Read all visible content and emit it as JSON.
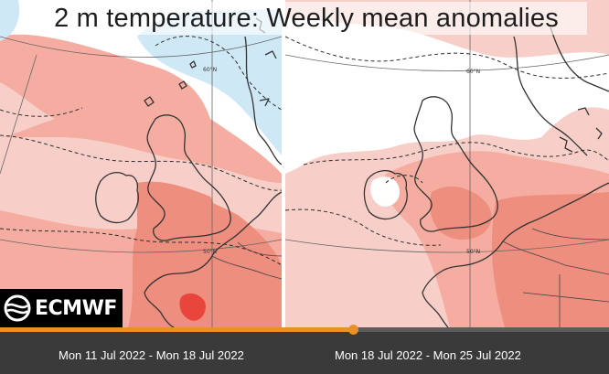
{
  "title": "2 m temperature: Weekly mean anomalies",
  "logo": {
    "text": "ECMWF",
    "icon": "ecmwf-swirl-icon"
  },
  "maps": [
    {
      "grid_labels": [
        "60°N",
        "50°N"
      ]
    },
    {
      "grid_labels": [
        "60°N",
        "50°N"
      ]
    }
  ],
  "timeline": {
    "weeks": [
      "Mon 11 Jul 2022 - Mon 18 Jul 2022",
      "Mon 18 Jul 2022 - Mon 25 Jul 2022"
    ],
    "progress_fraction": 0.58
  },
  "colors": {
    "warm_1": "#f8cfc8",
    "warm_2": "#f4ada0",
    "warm_3": "#ee8e7e",
    "warm_4": "#e8463a",
    "cool_1": "#cfe8f6",
    "neutral": "#ffffff",
    "accent": "#e8912b",
    "bar": "#3a3a3a"
  }
}
